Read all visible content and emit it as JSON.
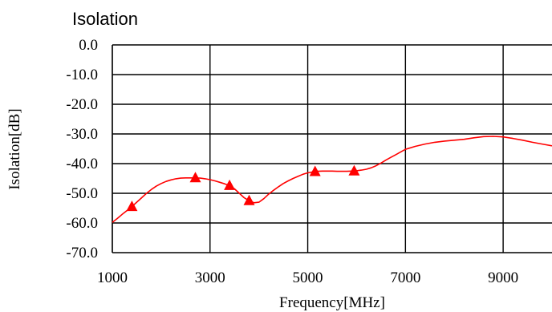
{
  "chart_data": {
    "type": "line",
    "title": "Isolation",
    "xlabel": "Frequency[MHz]",
    "ylabel": "Isolation[dB]",
    "xlim": [
      1000,
      10000
    ],
    "ylim": [
      -70,
      0
    ],
    "x_ticks": [
      1000,
      3000,
      5000,
      7000,
      9000
    ],
    "x_tick_labels": [
      "1000",
      "3000",
      "5000",
      "7000",
      "9000"
    ],
    "y_ticks": [
      0,
      -10,
      -20,
      -30,
      -40,
      -50,
      -60,
      -70
    ],
    "y_tick_labels": [
      "0.0",
      "-10.0",
      "-20.0",
      "-30.0",
      "-40.0",
      "-50.0",
      "-60.0",
      "-70.0"
    ],
    "grid": true,
    "series": [
      {
        "color": "#ff0000",
        "x": [
          1000,
          1100,
          1200,
          1300,
          1400,
          1500,
          1600,
          1700,
          1800,
          1900,
          2000,
          2100,
          2200,
          2300,
          2400,
          2500,
          2600,
          2700,
          2800,
          2900,
          3000,
          3100,
          3200,
          3300,
          3400,
          3500,
          3600,
          3700,
          3800,
          3900,
          4000,
          4100,
          4200,
          4300,
          4400,
          4500,
          4600,
          4700,
          4800,
          4900,
          5000,
          5100,
          5200,
          5300,
          5400,
          5500,
          5600,
          5700,
          5800,
          5900,
          6000,
          6100,
          6200,
          6300,
          6400,
          6500,
          6600,
          6700,
          6800,
          6900,
          7000,
          7200,
          7400,
          7600,
          7800,
          8000,
          8200,
          8400,
          8600,
          8800,
          9000,
          9200,
          9400,
          9600,
          9800,
          10000
        ],
        "y": [
          -59.8,
          -58.5,
          -57.1,
          -55.8,
          -54.5,
          -53.0,
          -51.5,
          -50.0,
          -48.7,
          -47.6,
          -46.7,
          -46.0,
          -45.5,
          -45.1,
          -44.9,
          -44.8,
          -44.8,
          -44.8,
          -44.9,
          -45.1,
          -45.4,
          -45.8,
          -46.3,
          -46.8,
          -47.4,
          -48.5,
          -50.0,
          -51.5,
          -52.5,
          -53.2,
          -53.0,
          -51.8,
          -50.3,
          -49.0,
          -47.8,
          -46.7,
          -45.8,
          -45.0,
          -44.3,
          -43.6,
          -43.1,
          -42.8,
          -42.6,
          -42.5,
          -42.5,
          -42.5,
          -42.6,
          -42.6,
          -42.6,
          -42.5,
          -42.4,
          -42.2,
          -41.9,
          -41.4,
          -40.7,
          -39.8,
          -38.8,
          -37.9,
          -37.0,
          -36.1,
          -35.2,
          -34.2,
          -33.4,
          -32.8,
          -32.4,
          -32.1,
          -31.8,
          -31.3,
          -30.9,
          -30.8,
          -31.0,
          -31.5,
          -32.1,
          -32.8,
          -33.4,
          -34.0
        ]
      }
    ],
    "markers": {
      "shape": "triangle",
      "color": "#ff0000",
      "x": [
        1400,
        2700,
        3400,
        3800,
        5150,
        5950
      ],
      "y": [
        -54.5,
        -44.8,
        -47.4,
        -52.5,
        -42.7,
        -42.5
      ]
    }
  }
}
